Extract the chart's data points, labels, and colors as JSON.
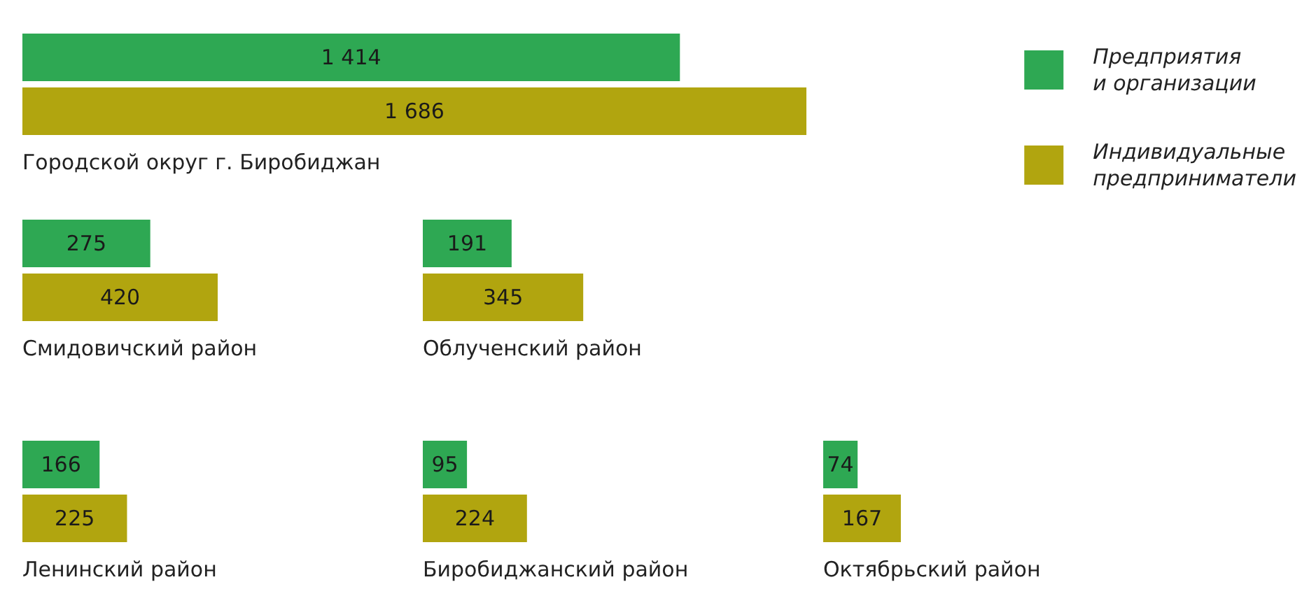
{
  "chart_data": [
    {
      "type": "bar",
      "orientation": "horizontal",
      "title": "Городской округ г. Биробиджан",
      "categories": [
        null
      ],
      "series": [
        {
          "name": "Предприятия и организации",
          "color": "#2ea853",
          "values": [
            1414
          ],
          "value_labels": [
            "1 414"
          ]
        },
        {
          "name": "Индивидуальные предприниматели",
          "color": "#b1a50f",
          "values": [
            1686
          ],
          "value_labels": [
            "1 686"
          ]
        }
      ],
      "legend": "right",
      "tick_labels": false
    },
    {
      "type": "bar",
      "orientation": "horizontal",
      "title": "Смидовичский район",
      "categories": [
        null
      ],
      "series": [
        {
          "color": "#2ea853",
          "values": [
            275
          ],
          "value_labels": [
            "275"
          ]
        },
        {
          "color": "#b1a50f",
          "values": [
            420
          ],
          "value_labels": [
            "420"
          ]
        }
      ],
      "tick_labels": false
    },
    {
      "type": "bar",
      "orientation": "horizontal",
      "title": "Облученский район",
      "categories": [
        null
      ],
      "series": [
        {
          "color": "#2ea853",
          "values": [
            191
          ],
          "value_labels": [
            "191"
          ]
        },
        {
          "color": "#b1a50f",
          "values": [
            345
          ],
          "value_labels": [
            "345"
          ]
        }
      ],
      "tick_labels": false
    },
    {
      "type": "bar",
      "orientation": "horizontal",
      "title": "Ленинский район",
      "categories": [
        null
      ],
      "series": [
        {
          "color": "#2ea853",
          "values": [
            166
          ],
          "value_labels": [
            "166"
          ]
        },
        {
          "color": "#b1a50f",
          "values": [
            225
          ],
          "value_labels": [
            "225"
          ]
        }
      ],
      "tick_labels": false
    },
    {
      "type": "bar",
      "orientation": "horizontal",
      "title": "Биробиджанский район",
      "categories": [
        null
      ],
      "series": [
        {
          "color": "#2ea853",
          "values": [
            95
          ],
          "value_labels": [
            "95"
          ]
        },
        {
          "color": "#b1a50f",
          "values": [
            224
          ],
          "value_labels": [
            "224"
          ]
        }
      ],
      "tick_labels": false
    },
    {
      "type": "bar",
      "orientation": "horizontal",
      "title": "Октябрьский район",
      "categories": [
        null
      ],
      "series": [
        {
          "color": "#2ea853",
          "values": [
            74
          ],
          "value_labels": [
            "74"
          ]
        },
        {
          "color": "#b1a50f",
          "values": [
            167
          ],
          "value_labels": [
            "167"
          ]
        }
      ],
      "tick_labels": false
    }
  ]
}
